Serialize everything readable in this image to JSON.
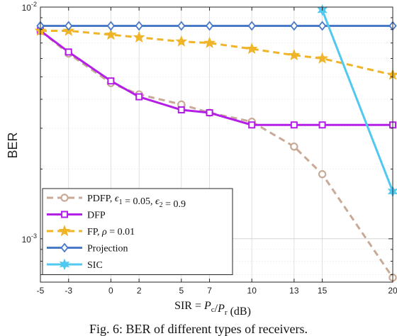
{
  "chart_data": {
    "type": "line",
    "y_scale": "log",
    "ylim": [
      0.00065,
      0.01
    ],
    "xlim": [
      -5,
      20
    ],
    "xticks": [
      -5,
      -3,
      0,
      2,
      5,
      7,
      10,
      13,
      15,
      20
    ],
    "xtick_labels": [
      "-5",
      "-3",
      "0",
      "2",
      "5",
      "7",
      "10",
      "13",
      "15",
      "20"
    ],
    "ytick_labels": [
      {
        "value": 0.01,
        "base": "10",
        "exp": "-2"
      },
      {
        "value": 0.001,
        "base": "10",
        "exp": "-3"
      }
    ],
    "ylabel": "BER",
    "xlabel": "SIR = P_c/P_r (dB)",
    "grid": true,
    "legend_position": "bottom-left",
    "series": [
      {
        "name": "PDFP, ϵ1 = 0.05, ϵ2 = 0.9",
        "color": "#c8aa96",
        "line": "dashed",
        "marker": "circle",
        "x": [
          -5,
          -3,
          0,
          2,
          5,
          7,
          10,
          13,
          15,
          20
        ],
        "y": [
          0.0079,
          0.0063,
          0.0047,
          0.0042,
          0.0038,
          0.0035,
          0.0032,
          0.0025,
          0.0019,
          0.00068
        ]
      },
      {
        "name": "DFP",
        "color": "#b41ee6",
        "line": "solid",
        "marker": "square",
        "x": [
          -5,
          -3,
          0,
          2,
          5,
          7,
          10,
          13,
          15,
          20
        ],
        "y": [
          0.0079,
          0.0064,
          0.0048,
          0.0041,
          0.0036,
          0.0035,
          0.0031,
          0.0031,
          0.0031,
          0.0031
        ]
      },
      {
        "name": "FP, ρ = 0.01",
        "color": "#f0b428",
        "line": "dashed",
        "marker": "star",
        "x": [
          -5,
          -3,
          0,
          2,
          5,
          7,
          10,
          13,
          15,
          20
        ],
        "y": [
          0.0079,
          0.0079,
          0.0076,
          0.0074,
          0.0071,
          0.007,
          0.0066,
          0.0062,
          0.006,
          0.0051
        ]
      },
      {
        "name": "Projection",
        "color": "#4a7ac8",
        "line": "solid",
        "marker": "diamond",
        "x": [
          -5,
          -3,
          0,
          2,
          5,
          7,
          10,
          13,
          15,
          20
        ],
        "y": [
          0.0083,
          0.0083,
          0.0083,
          0.0083,
          0.0083,
          0.0083,
          0.0083,
          0.0083,
          0.0083,
          0.0083
        ]
      },
      {
        "name": "SIC",
        "color": "#50c8f0",
        "line": "solid",
        "marker": "hexagram",
        "x": [
          15,
          20
        ],
        "y": [
          0.0097,
          0.0016
        ]
      }
    ]
  },
  "legend": {
    "entries": [
      {
        "base": "PDFP, ",
        "rest": [
          [
            "ϵ",
            ""
          ],
          [
            "1",
            "sub"
          ],
          [
            " = 0.05, ",
            ""
          ],
          [
            "ϵ",
            ""
          ],
          [
            "2",
            "sub"
          ],
          [
            " = 0.9",
            ""
          ]
        ]
      },
      {
        "base": "DFP",
        "rest": []
      },
      {
        "base": "FP, ",
        "rest": [
          [
            "ρ",
            ""
          ],
          [
            " = 0.01",
            ""
          ]
        ]
      },
      {
        "base": "Projection",
        "rest": []
      },
      {
        "base": "SIC",
        "rest": []
      }
    ]
  },
  "caption": "Fig. 6: BER of different types of receivers."
}
